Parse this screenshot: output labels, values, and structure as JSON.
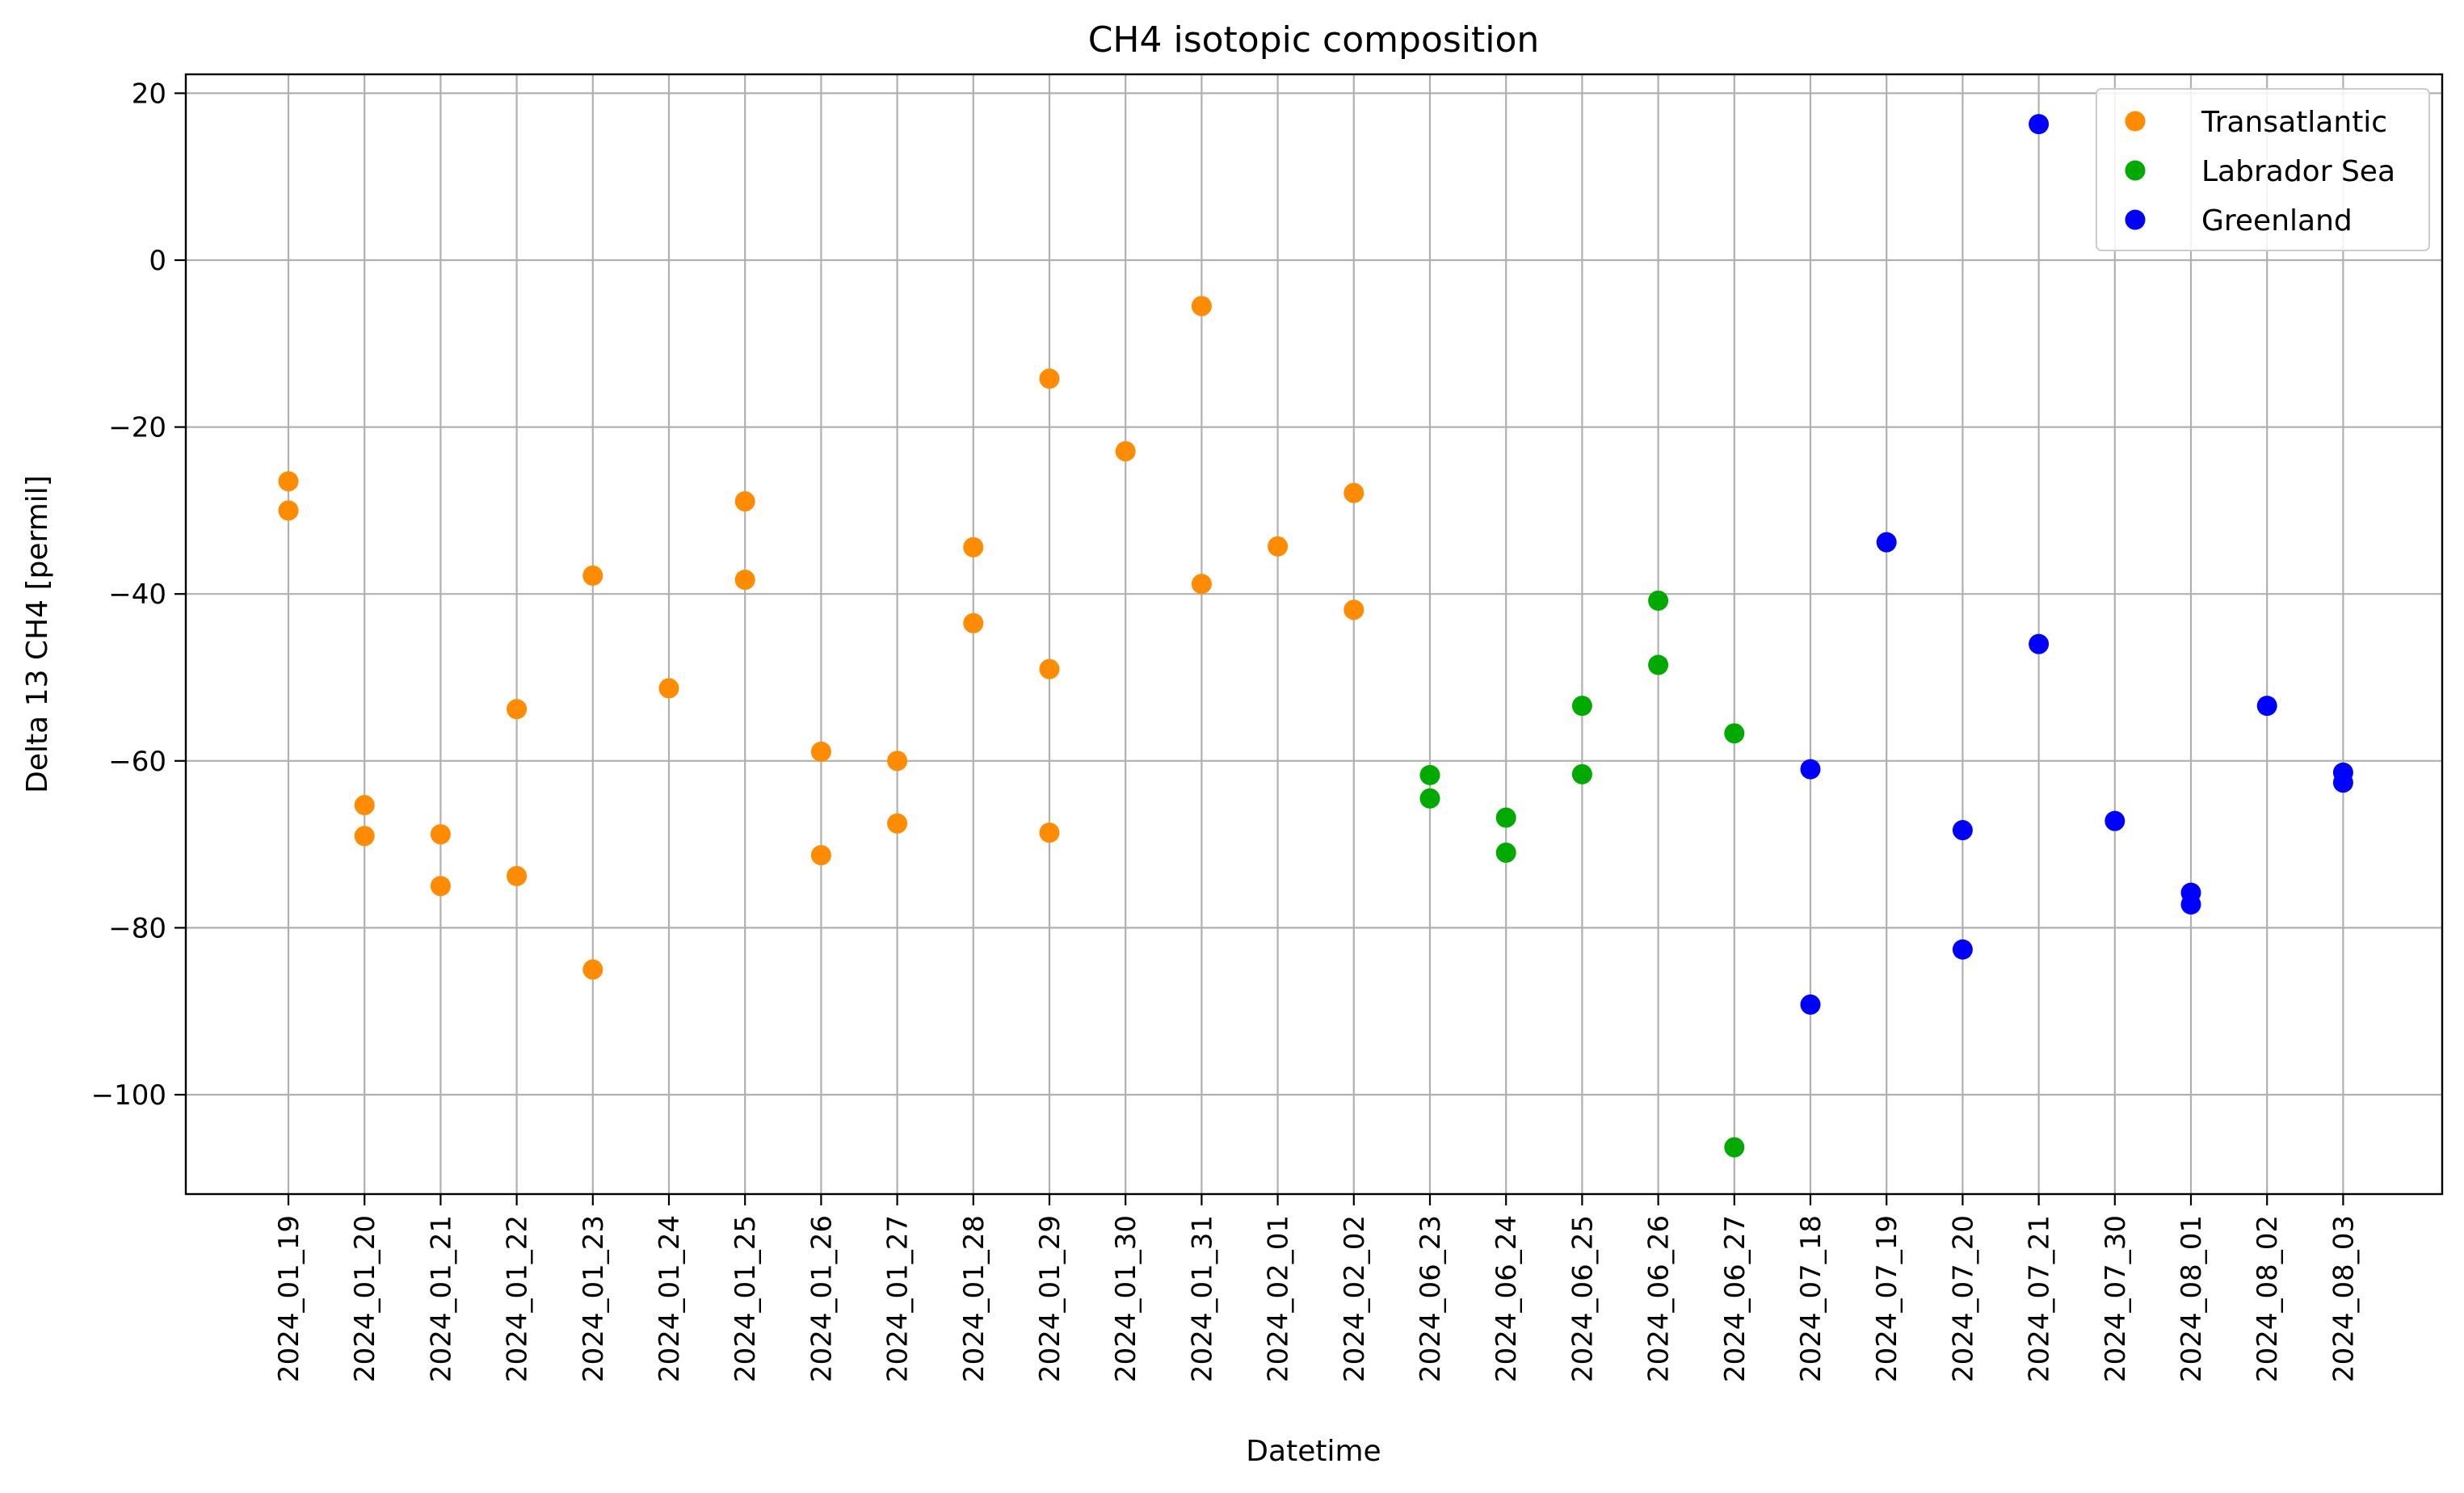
{
  "chart_data": {
    "type": "scatter",
    "title": "CH4 isotopic composition",
    "xlabel": "Datetime",
    "ylabel": "Delta 13 CH4 [permil]",
    "ylim": [
      -113,
      22.5
    ],
    "yticks": [
      20,
      0,
      -20,
      -40,
      -60,
      -80,
      -100
    ],
    "ytick_labels": [
      "20",
      "0",
      "−20",
      "−40",
      "−60",
      "−80",
      "−100"
    ],
    "grid": true,
    "legend_position": "top-right",
    "categories": [
      "2024_01_19",
      "2024_01_20",
      "2024_01_21",
      "2024_01_22",
      "2024_01_23",
      "2024_01_24",
      "2024_01_25",
      "2024_01_26",
      "2024_01_27",
      "2024_01_28",
      "2024_01_29",
      "2024_01_30",
      "2024_01_31",
      "2024_02_01",
      "2024_02_02",
      "2024_06_23",
      "2024_06_24",
      "2024_06_25",
      "2024_06_26",
      "2024_06_27",
      "2024_07_18",
      "2024_07_19",
      "2024_07_20",
      "2024_07_21",
      "2024_07_30",
      "2024_08_01",
      "2024_08_02",
      "2024_08_03"
    ],
    "series": [
      {
        "name": "Transatlantic",
        "color": "#ff8c00",
        "points": [
          {
            "x": "2024_01_19",
            "y": -26.5
          },
          {
            "x": "2024_01_19",
            "y": -30.0
          },
          {
            "x": "2024_01_20",
            "y": -65.3
          },
          {
            "x": "2024_01_20",
            "y": -69.0
          },
          {
            "x": "2024_01_21",
            "y": -68.8
          },
          {
            "x": "2024_01_21",
            "y": -75.0
          },
          {
            "x": "2024_01_22",
            "y": -53.8
          },
          {
            "x": "2024_01_22",
            "y": -73.8
          },
          {
            "x": "2024_01_23",
            "y": -37.8
          },
          {
            "x": "2024_01_23",
            "y": -85.0
          },
          {
            "x": "2024_01_24",
            "y": -51.3
          },
          {
            "x": "2024_01_25",
            "y": -28.9
          },
          {
            "x": "2024_01_25",
            "y": -38.3
          },
          {
            "x": "2024_01_26",
            "y": -58.9
          },
          {
            "x": "2024_01_26",
            "y": -71.3
          },
          {
            "x": "2024_01_27",
            "y": -60.0
          },
          {
            "x": "2024_01_27",
            "y": -67.5
          },
          {
            "x": "2024_01_28",
            "y": -34.4
          },
          {
            "x": "2024_01_28",
            "y": -43.5
          },
          {
            "x": "2024_01_29",
            "y": -14.2
          },
          {
            "x": "2024_01_29",
            "y": -49.0
          },
          {
            "x": "2024_01_29",
            "y": -68.6
          },
          {
            "x": "2024_01_30",
            "y": -22.9
          },
          {
            "x": "2024_01_31",
            "y": -5.5
          },
          {
            "x": "2024_01_31",
            "y": -38.8
          },
          {
            "x": "2024_02_01",
            "y": -34.3
          },
          {
            "x": "2024_02_02",
            "y": -27.9
          },
          {
            "x": "2024_02_02",
            "y": -41.9
          }
        ]
      },
      {
        "name": "Labrador Sea",
        "color": "#00aa00",
        "points": [
          {
            "x": "2024_06_23",
            "y": -61.7
          },
          {
            "x": "2024_06_23",
            "y": -64.5
          },
          {
            "x": "2024_06_24",
            "y": -66.8
          },
          {
            "x": "2024_06_24",
            "y": -71.0
          },
          {
            "x": "2024_06_25",
            "y": -53.4
          },
          {
            "x": "2024_06_25",
            "y": -61.6
          },
          {
            "x": "2024_06_26",
            "y": -40.8
          },
          {
            "x": "2024_06_26",
            "y": -48.5
          },
          {
            "x": "2024_06_27",
            "y": -56.7
          },
          {
            "x": "2024_06_27",
            "y": -106.3
          }
        ]
      },
      {
        "name": "Greenland",
        "color": "#0000ff",
        "points": [
          {
            "x": "2024_07_18",
            "y": -61.0
          },
          {
            "x": "2024_07_18",
            "y": -89.2
          },
          {
            "x": "2024_07_19",
            "y": -33.8
          },
          {
            "x": "2024_07_20",
            "y": -68.3
          },
          {
            "x": "2024_07_20",
            "y": -82.6
          },
          {
            "x": "2024_07_21",
            "y": 16.3
          },
          {
            "x": "2024_07_21",
            "y": -46.0
          },
          {
            "x": "2024_07_30",
            "y": -67.2
          },
          {
            "x": "2024_08_01",
            "y": -75.8
          },
          {
            "x": "2024_08_01",
            "y": -77.2
          },
          {
            "x": "2024_08_02",
            "y": -53.4
          },
          {
            "x": "2024_08_03",
            "y": -61.4
          },
          {
            "x": "2024_08_03",
            "y": -62.6
          }
        ]
      }
    ]
  }
}
